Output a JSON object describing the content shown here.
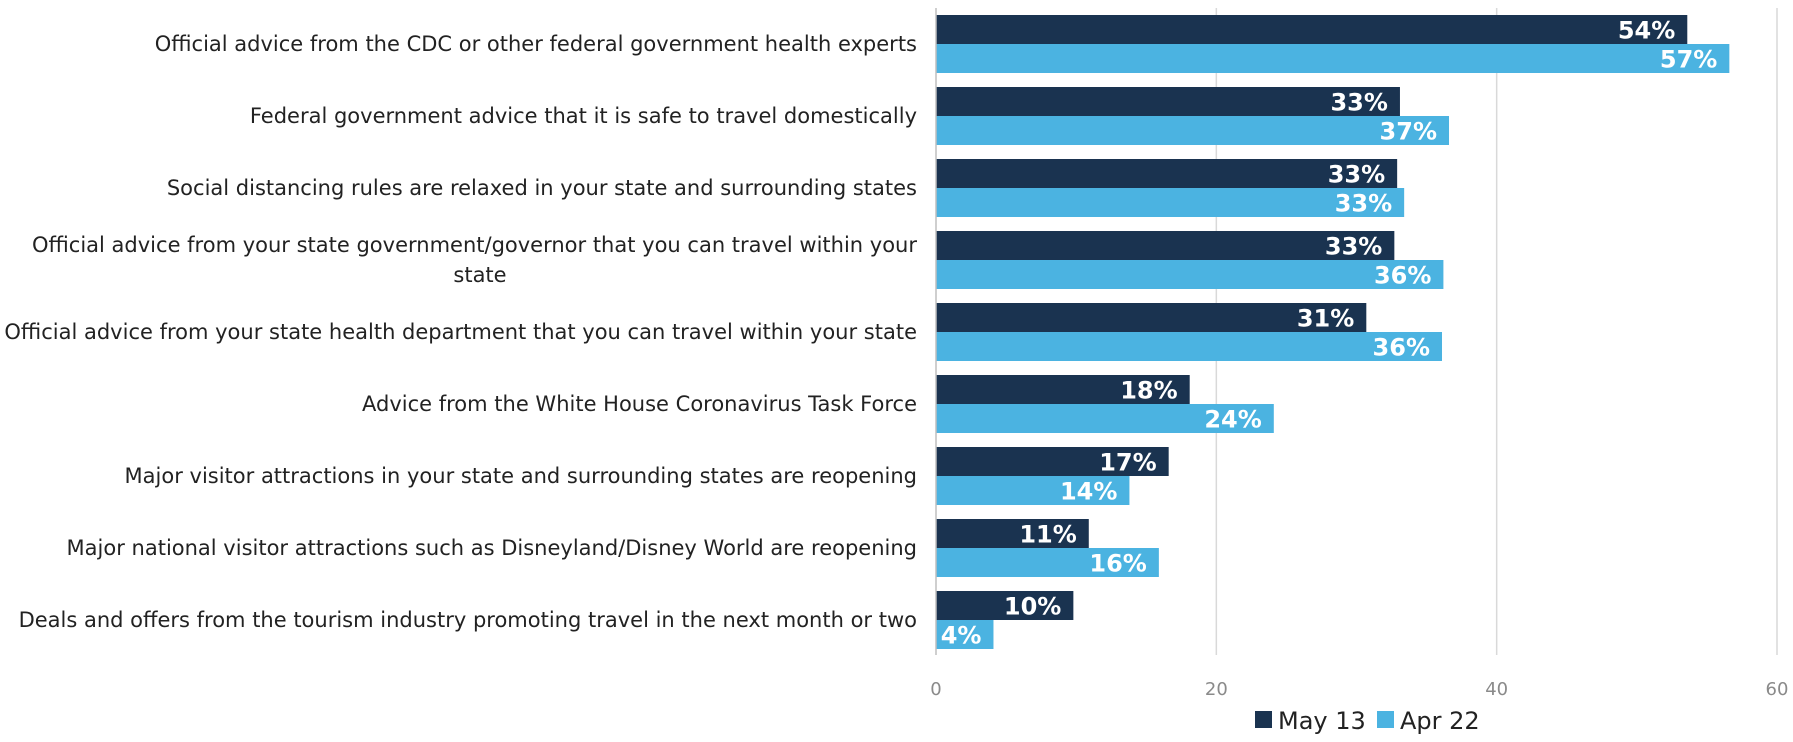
{
  "chart_data": {
    "type": "bar",
    "orientation": "horizontal",
    "categories": [
      [
        "Official advice from the CDC or other federal government health experts"
      ],
      [
        "Federal government advice that it is safe to travel domestically"
      ],
      [
        "Social distancing rules are relaxed in your state and surrounding states"
      ],
      [
        "Official advice from your state government/governor that you can travel within your",
        "state"
      ],
      [
        "Official advice from your state health department that you can travel within your state"
      ],
      [
        "Advice from the White House Coronavirus Task Force"
      ],
      [
        "Major visitor attractions in your state and surrounding states are reopening"
      ],
      [
        "Major national visitor attractions such as Disneyland/Disney World are reopening"
      ],
      [
        "Deals and offers from the tourism industry promoting travel in the next month or two"
      ]
    ],
    "series": [
      {
        "name": "May 13",
        "color": "#1a3350",
        "values": [
          53.6,
          33.1,
          32.9,
          32.7,
          30.7,
          18.1,
          16.6,
          10.9,
          9.8
        ],
        "labels": [
          "54%",
          "33%",
          "33%",
          "33%",
          "31%",
          "18%",
          "17%",
          "11%",
          "10%"
        ]
      },
      {
        "name": "Apr 22",
        "color": "#4bb3e1",
        "values": [
          56.6,
          36.6,
          33.4,
          36.2,
          36.1,
          24.1,
          13.8,
          15.9,
          4.1
        ],
        "labels": [
          "57%",
          "37%",
          "33%",
          "36%",
          "36%",
          "24%",
          "14%",
          "16%",
          "4%"
        ]
      }
    ],
    "xlim": [
      0,
      60
    ],
    "xticks": [
      0,
      20,
      40,
      60
    ],
    "xticklabels": [
      "0",
      "20",
      "40",
      "60"
    ],
    "grid": true,
    "legend": "bottom-center",
    "title": "",
    "xlabel": "",
    "ylabel": ""
  }
}
